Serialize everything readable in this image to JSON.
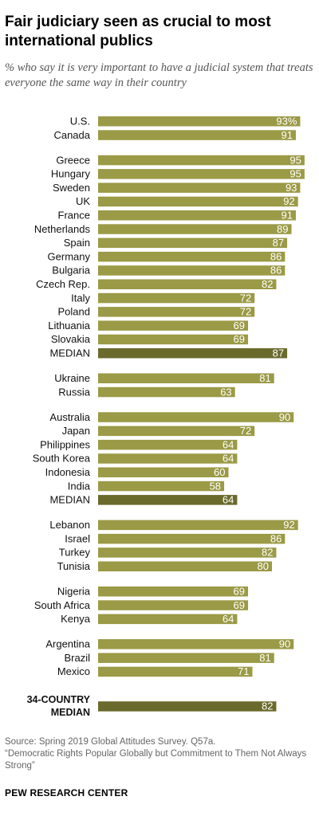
{
  "title": "Fair judiciary seen as crucial to most international publics",
  "subtitle": "% who say it is very important to have a judicial system that treats everyone the same way in their country",
  "source": "Source: Spring 2019 Global Attitudes Survey. Q57a.",
  "report": "“Democratic Rights Popular Globally but Commitment to Them Not Always Strong”",
  "organization": "PEW RESEARCH CENTER",
  "colors": {
    "bar": "#9b9a46",
    "median_bar": "#6a6a2c",
    "value_text": "#ffffff"
  },
  "chart_data": {
    "type": "bar",
    "orientation": "horizontal",
    "xlim": [
      0,
      100
    ],
    "value_suffix_first": "%",
    "groups": [
      {
        "rows": [
          {
            "label": "U.S.",
            "value": 93
          },
          {
            "label": "Canada",
            "value": 91
          }
        ]
      },
      {
        "rows": [
          {
            "label": "Greece",
            "value": 95
          },
          {
            "label": "Hungary",
            "value": 95
          },
          {
            "label": "Sweden",
            "value": 93
          },
          {
            "label": "UK",
            "value": 92
          },
          {
            "label": "France",
            "value": 91
          },
          {
            "label": "Netherlands",
            "value": 89
          },
          {
            "label": "Spain",
            "value": 87
          },
          {
            "label": "Germany",
            "value": 86
          },
          {
            "label": "Bulgaria",
            "value": 86
          },
          {
            "label": "Czech Rep.",
            "value": 82
          },
          {
            "label": "Italy",
            "value": 72
          },
          {
            "label": "Poland",
            "value": 72
          },
          {
            "label": "Lithuania",
            "value": 69
          },
          {
            "label": "Slovakia",
            "value": 69
          },
          {
            "label": "MEDIAN",
            "value": 87,
            "median": true
          }
        ]
      },
      {
        "rows": [
          {
            "label": "Ukraine",
            "value": 81
          },
          {
            "label": "Russia",
            "value": 63
          }
        ]
      },
      {
        "rows": [
          {
            "label": "Australia",
            "value": 90
          },
          {
            "label": "Japan",
            "value": 72
          },
          {
            "label": "Philippines",
            "value": 64
          },
          {
            "label": "South Korea",
            "value": 64
          },
          {
            "label": "Indonesia",
            "value": 60
          },
          {
            "label": "India",
            "value": 58
          },
          {
            "label": "MEDIAN",
            "value": 64,
            "median": true
          }
        ]
      },
      {
        "rows": [
          {
            "label": "Lebanon",
            "value": 92
          },
          {
            "label": "Israel",
            "value": 86
          },
          {
            "label": "Turkey",
            "value": 82
          },
          {
            "label": "Tunisia",
            "value": 80
          }
        ]
      },
      {
        "rows": [
          {
            "label": "Nigeria",
            "value": 69
          },
          {
            "label": "South Africa",
            "value": 69
          },
          {
            "label": "Kenya",
            "value": 64
          }
        ]
      },
      {
        "rows": [
          {
            "label": "Argentina",
            "value": 90
          },
          {
            "label": "Brazil",
            "value": 81
          },
          {
            "label": "Mexico",
            "value": 71
          }
        ]
      },
      {
        "rows": [
          {
            "label": "34-COUNTRY MEDIAN",
            "label_lines": [
              "34-COUNTRY",
              "MEDIAN"
            ],
            "value": 82,
            "median": true,
            "bold": true
          }
        ]
      }
    ]
  }
}
